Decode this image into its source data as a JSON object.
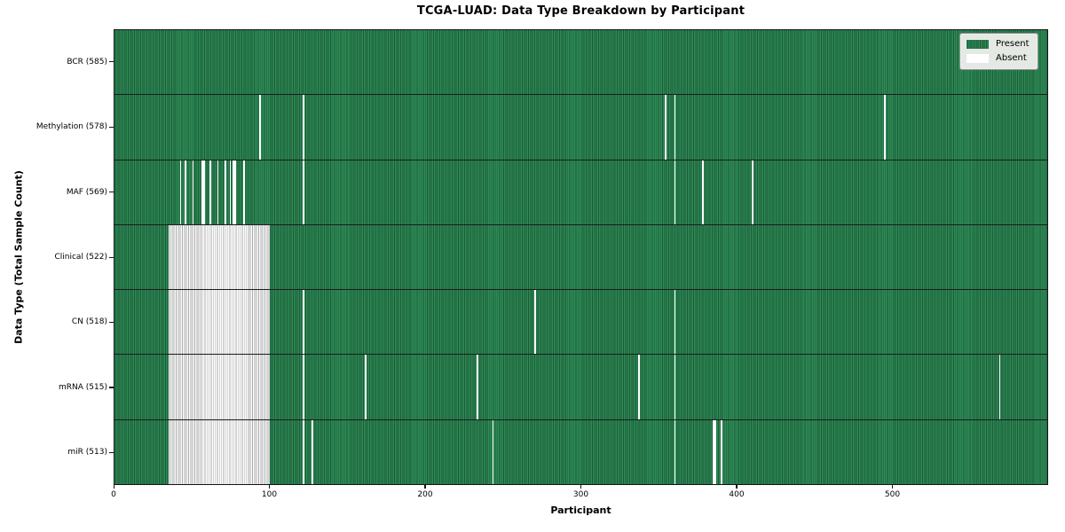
{
  "title": "TCGA-LUAD: Data Type Breakdown by Participant",
  "chart_data": {
    "type": "heatmap",
    "title": "TCGA-LUAD: Data Type Breakdown by Participant",
    "xlabel": "Participant",
    "ylabel": "Data Type (Total Sample Count)",
    "x_ticks": [
      0,
      100,
      200,
      300,
      400,
      500
    ],
    "n_participants": 600,
    "grid": false,
    "legend_position": "upper right",
    "legend": [
      {
        "label": "Present",
        "color": "#2E8B57"
      },
      {
        "label": "Absent",
        "color": "#FFFFFF"
      }
    ],
    "colors": {
      "present": "#2E8B57",
      "present_edge": "#1A5A36",
      "absent": "#FFFFFF",
      "absent_edge": "#ABABAB",
      "plot_border": "#141414",
      "legend_bg": "#E4E9E4"
    },
    "rows": [
      {
        "key": "bcr",
        "label": "BCR (585)",
        "count": 585,
        "absent": []
      },
      {
        "key": "methylation",
        "label": "Methylation (578)",
        "count": 578,
        "absent": [
          [
            93,
            1
          ],
          [
            121,
            1
          ],
          [
            354,
            1
          ],
          [
            360,
            1
          ],
          [
            495,
            1
          ]
        ]
      },
      {
        "key": "maf",
        "label": "MAF (569)",
        "count": 569,
        "absent": [
          [
            42,
            1
          ],
          [
            45,
            1
          ],
          [
            50,
            1
          ],
          [
            56,
            2
          ],
          [
            61,
            1
          ],
          [
            66,
            1
          ],
          [
            71,
            1
          ],
          [
            74,
            1
          ],
          [
            76,
            2
          ],
          [
            83,
            1
          ],
          [
            121,
            1
          ],
          [
            360,
            1
          ],
          [
            378,
            1
          ],
          [
            410,
            1
          ]
        ]
      },
      {
        "key": "clinical",
        "label": "Clinical (522)",
        "count": 522,
        "absent": [
          [
            35,
            65
          ]
        ]
      },
      {
        "key": "cn",
        "label": "CN (518)",
        "count": 518,
        "absent": [
          [
            35,
            65
          ],
          [
            121,
            1
          ],
          [
            270,
            1
          ],
          [
            360,
            1
          ]
        ]
      },
      {
        "key": "mrna",
        "label": "mRNA (515)",
        "count": 515,
        "absent": [
          [
            35,
            65
          ],
          [
            121,
            1
          ],
          [
            161,
            1
          ],
          [
            233,
            1
          ],
          [
            337,
            1
          ],
          [
            360,
            1
          ],
          [
            569,
            1
          ]
        ]
      },
      {
        "key": "mir",
        "label": "miR (513)",
        "count": 513,
        "absent": [
          [
            35,
            65
          ],
          [
            121,
            1
          ],
          [
            127,
            1
          ],
          [
            243,
            1
          ],
          [
            360,
            1
          ],
          [
            385,
            2
          ],
          [
            390,
            1
          ]
        ]
      }
    ]
  }
}
